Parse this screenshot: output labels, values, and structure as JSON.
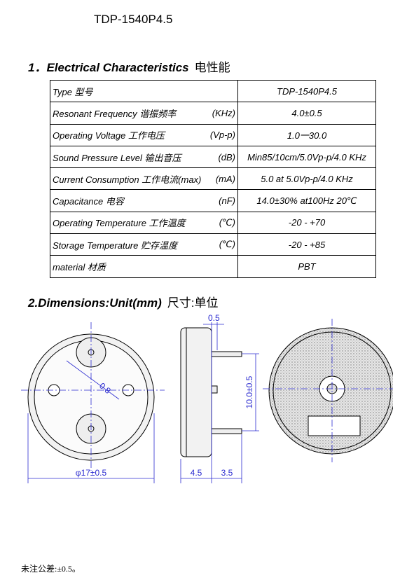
{
  "header": {
    "title": "TDP-1540P4.5"
  },
  "section1": {
    "heading_en": "1．Electrical Characteristics",
    "heading_zh": "电性能"
  },
  "table": {
    "rows": [
      [
        "Type 型号",
        "",
        "TDP-1540P4.5"
      ],
      [
        "Resonant Frequency 谐振频率",
        "(KHz)",
        "4.0±0.5"
      ],
      [
        "Operating Voltage 工作电压",
        "(Vp-p)",
        "1.0一30.0"
      ],
      [
        "Sound Pressure Level 输出音压",
        "(dB)",
        "Min85/10cm/5.0Vp-p/4.0 KHz"
      ],
      [
        "Current Consumption 工作电流(max)",
        "(mA)",
        "5.0 at 5.0Vp-p/4.0 KHz"
      ],
      [
        "Capacitance 电容",
        "(nF)",
        "14.0±30% at100Hz 20℃"
      ],
      [
        "Operating Temperature 工作温度",
        "(℃)",
        "-20 - +70"
      ],
      [
        "Storage Temperature 贮存温度",
        "(℃)",
        "-20 - +85"
      ],
      [
        "material 材质",
        "",
        "PBT"
      ]
    ]
  },
  "section2": {
    "heading_en": "2.Dimensions:Unit(mm)",
    "heading_zh": "尺寸:单位"
  },
  "drawing": {
    "hole": "0.8",
    "pin_width": "0.5",
    "pin_pitch": "10.0±0.5",
    "diameter": "φ17±0.5",
    "height": "4.5",
    "pin_length": "3.5"
  },
  "footer": {
    "note": "未注公差:±0.5。"
  }
}
